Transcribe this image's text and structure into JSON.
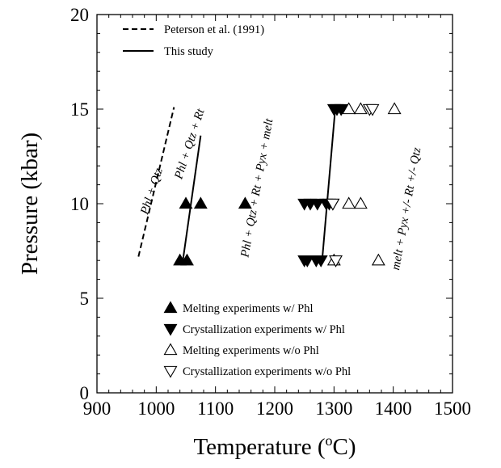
{
  "chart_data": {
    "type": "scatter",
    "title": "",
    "xlabel": "Temperature (°C)",
    "xlabel_parts": {
      "main": "Temperature (",
      "sup": "o",
      "end": "C)"
    },
    "ylabel": "Pressure (kbar)",
    "xlim": [
      900,
      1500
    ],
    "ylim": [
      0,
      20
    ],
    "x_major_ticks": [
      900,
      1000,
      1100,
      1200,
      1300,
      1400,
      1500
    ],
    "y_major_ticks": [
      0,
      5,
      10,
      15,
      20
    ],
    "x_minor_step": 20,
    "y_minor_step": 1,
    "x_tick_labels": [
      "900",
      "1000",
      "1100",
      "1200",
      "1300",
      "1400",
      "1500"
    ],
    "y_tick_labels": [
      "0",
      "5",
      "10",
      "15",
      "20"
    ],
    "grid": false,
    "series": [
      {
        "name": "Melting experiments w/ Phl",
        "marker": "triangle-up-filled",
        "points": [
          [
            1040,
            7
          ],
          [
            1052,
            7
          ],
          [
            1050,
            10
          ],
          [
            1075,
            10
          ],
          [
            1150,
            10
          ]
        ]
      },
      {
        "name": "Crystallization experiments w/ Phl",
        "marker": "triangle-down-filled",
        "points": [
          [
            1250,
            7
          ],
          [
            1255,
            7
          ],
          [
            1270,
            7
          ],
          [
            1278,
            7
          ],
          [
            1250,
            10
          ],
          [
            1260,
            10
          ],
          [
            1272,
            10
          ],
          [
            1287,
            10
          ],
          [
            1292,
            10
          ],
          [
            1298,
            10
          ],
          [
            1300,
            15
          ],
          [
            1305,
            15
          ],
          [
            1312,
            15
          ]
        ]
      },
      {
        "name": "Melting experiments w/o Phl",
        "marker": "triangle-up-open",
        "points": [
          [
            1300,
            7
          ],
          [
            1375,
            7
          ],
          [
            1325,
            10
          ],
          [
            1345,
            10
          ],
          [
            1325,
            15
          ],
          [
            1345,
            15
          ],
          [
            1402,
            15
          ]
        ]
      },
      {
        "name": "Crystallization experiments w/o Phl",
        "marker": "triangle-down-open",
        "points": [
          [
            1303,
            7
          ],
          [
            1298,
            10
          ],
          [
            1360,
            15
          ],
          [
            1365,
            15
          ]
        ]
      }
    ],
    "lines": [
      {
        "name": "Peterson et al. (1991)",
        "style": "dashed",
        "points": [
          [
            970,
            7.2
          ],
          [
            1030,
            15.1
          ]
        ]
      },
      {
        "name": "This study",
        "style": "solid",
        "points": [
          [
            1045,
            7
          ],
          [
            1075,
            13.6
          ]
        ]
      },
      {
        "name": "This study",
        "style": "solid",
        "points": [
          [
            1280,
            7
          ],
          [
            1302,
            15
          ]
        ]
      }
    ],
    "line_legend": [
      {
        "label": "Peterson et al. (1991)",
        "style": "dashed"
      },
      {
        "label": "This study",
        "style": "solid"
      }
    ],
    "legend": [
      {
        "label": "Melting experiments w/ Phl",
        "symbol": "▲"
      },
      {
        "label": "Crystallization experiments w/ Phl",
        "symbol": "▼"
      },
      {
        "label": "Melting experiments w/o Phl",
        "symbol": "△"
      },
      {
        "label": "Crystallization experiments w/o Phl",
        "symbol": "▽"
      }
    ],
    "annotations": [
      {
        "text": "Phl + Qtz",
        "x": 998,
        "y": 10.6,
        "rotation": -72
      },
      {
        "text": "Phl + Qtz + Rt",
        "x": 1062,
        "y": 13.1,
        "rotation": -72
      },
      {
        "text": "Phl + Qtz + Rt + Pyx + melt",
        "x": 1176,
        "y": 10.8,
        "rotation": -80
      },
      {
        "text": "melt + Pyx +/- Rt +/- Qtz",
        "x": 1428,
        "y": 9.7,
        "rotation": -80
      }
    ]
  }
}
